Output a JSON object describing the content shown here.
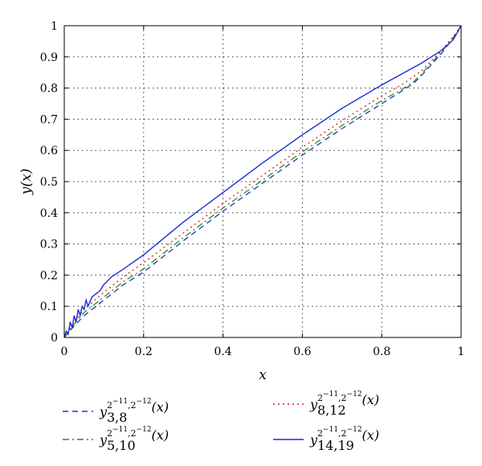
{
  "chart_data": {
    "type": "line",
    "xlabel": "x",
    "ylabel": "y(x)",
    "xlim": [
      0,
      1
    ],
    "ylim": [
      0,
      1
    ],
    "xticks": [
      "0",
      "0.2",
      "0.4",
      "0.6",
      "0.8",
      "1"
    ],
    "yticks": [
      "0",
      "0.1",
      "0.2",
      "0.3",
      "0.4",
      "0.5",
      "0.6",
      "0.7",
      "0.8",
      "0.9",
      "1"
    ],
    "grid": true,
    "legend_position": "below",
    "series": [
      {
        "legend": {
          "base": "y",
          "sub": "3,8",
          "sup": "2",
          "sup_exp1": "−11",
          "sup_sep": ",2",
          "sup_exp2": "−12",
          "arg": "(x)"
        },
        "color": "#1f3aa8",
        "dash": "dashed",
        "x": [
          0,
          0.02,
          0.05,
          0.1,
          0.15,
          0.2,
          0.3,
          0.4,
          0.5,
          0.6,
          0.7,
          0.8,
          0.85,
          0.88,
          0.9,
          0.95,
          0.98,
          1.0
        ],
        "y": [
          0,
          0.03,
          0.07,
          0.12,
          0.17,
          0.21,
          0.31,
          0.405,
          0.495,
          0.585,
          0.67,
          0.75,
          0.79,
          0.815,
          0.84,
          0.91,
          0.96,
          1.0
        ]
      },
      {
        "legend": {
          "base": "y",
          "sub": "5,10",
          "sup": "2",
          "sup_exp1": "−11",
          "sup_sep": ",2",
          "sup_exp2": "−12",
          "arg": "(x)"
        },
        "color": "#2a8c2a",
        "dash": "dashdot",
        "x": [
          0,
          0.02,
          0.05,
          0.1,
          0.15,
          0.2,
          0.3,
          0.4,
          0.5,
          0.6,
          0.7,
          0.8,
          0.85,
          0.88,
          0.9,
          0.95,
          0.98,
          1.0
        ],
        "y": [
          0,
          0.035,
          0.08,
          0.13,
          0.18,
          0.22,
          0.32,
          0.415,
          0.505,
          0.595,
          0.68,
          0.76,
          0.795,
          0.82,
          0.845,
          0.915,
          0.962,
          1.0
        ]
      },
      {
        "legend": {
          "base": "y",
          "sub": "8,12",
          "sup": "2",
          "sup_exp1": "−11",
          "sup_sep": ",2",
          "sup_exp2": "−12",
          "arg": "(x)"
        },
        "color": "#d42020",
        "dash": "dotted",
        "x": [
          0,
          0.02,
          0.05,
          0.1,
          0.15,
          0.2,
          0.3,
          0.4,
          0.5,
          0.6,
          0.7,
          0.8,
          0.85,
          0.9,
          0.95,
          0.98,
          1.0
        ],
        "y": [
          0,
          0.04,
          0.09,
          0.145,
          0.195,
          0.24,
          0.335,
          0.43,
          0.52,
          0.61,
          0.695,
          0.775,
          0.81,
          0.855,
          0.92,
          0.965,
          1.0
        ]
      },
      {
        "legend": {
          "base": "y",
          "sub": "14,19",
          "sup": "2",
          "sup_exp1": "−11",
          "sup_sep": ",2",
          "sup_exp2": "−12",
          "arg": "(x)"
        },
        "color": "#1a2fd0",
        "dash": "solid",
        "x": [
          0,
          0.005,
          0.01,
          0.015,
          0.02,
          0.025,
          0.03,
          0.035,
          0.04,
          0.045,
          0.05,
          0.055,
          0.06,
          0.07,
          0.08,
          0.09,
          0.1,
          0.12,
          0.15,
          0.2,
          0.3,
          0.4,
          0.5,
          0.6,
          0.7,
          0.8,
          0.9,
          0.95,
          0.98,
          1.0
        ],
        "y": [
          0,
          0.02,
          0.01,
          0.05,
          0.03,
          0.07,
          0.05,
          0.09,
          0.07,
          0.1,
          0.09,
          0.12,
          0.1,
          0.13,
          0.14,
          0.15,
          0.17,
          0.195,
          0.22,
          0.265,
          0.37,
          0.465,
          0.56,
          0.65,
          0.735,
          0.81,
          0.88,
          0.92,
          0.955,
          1.0
        ]
      }
    ]
  }
}
